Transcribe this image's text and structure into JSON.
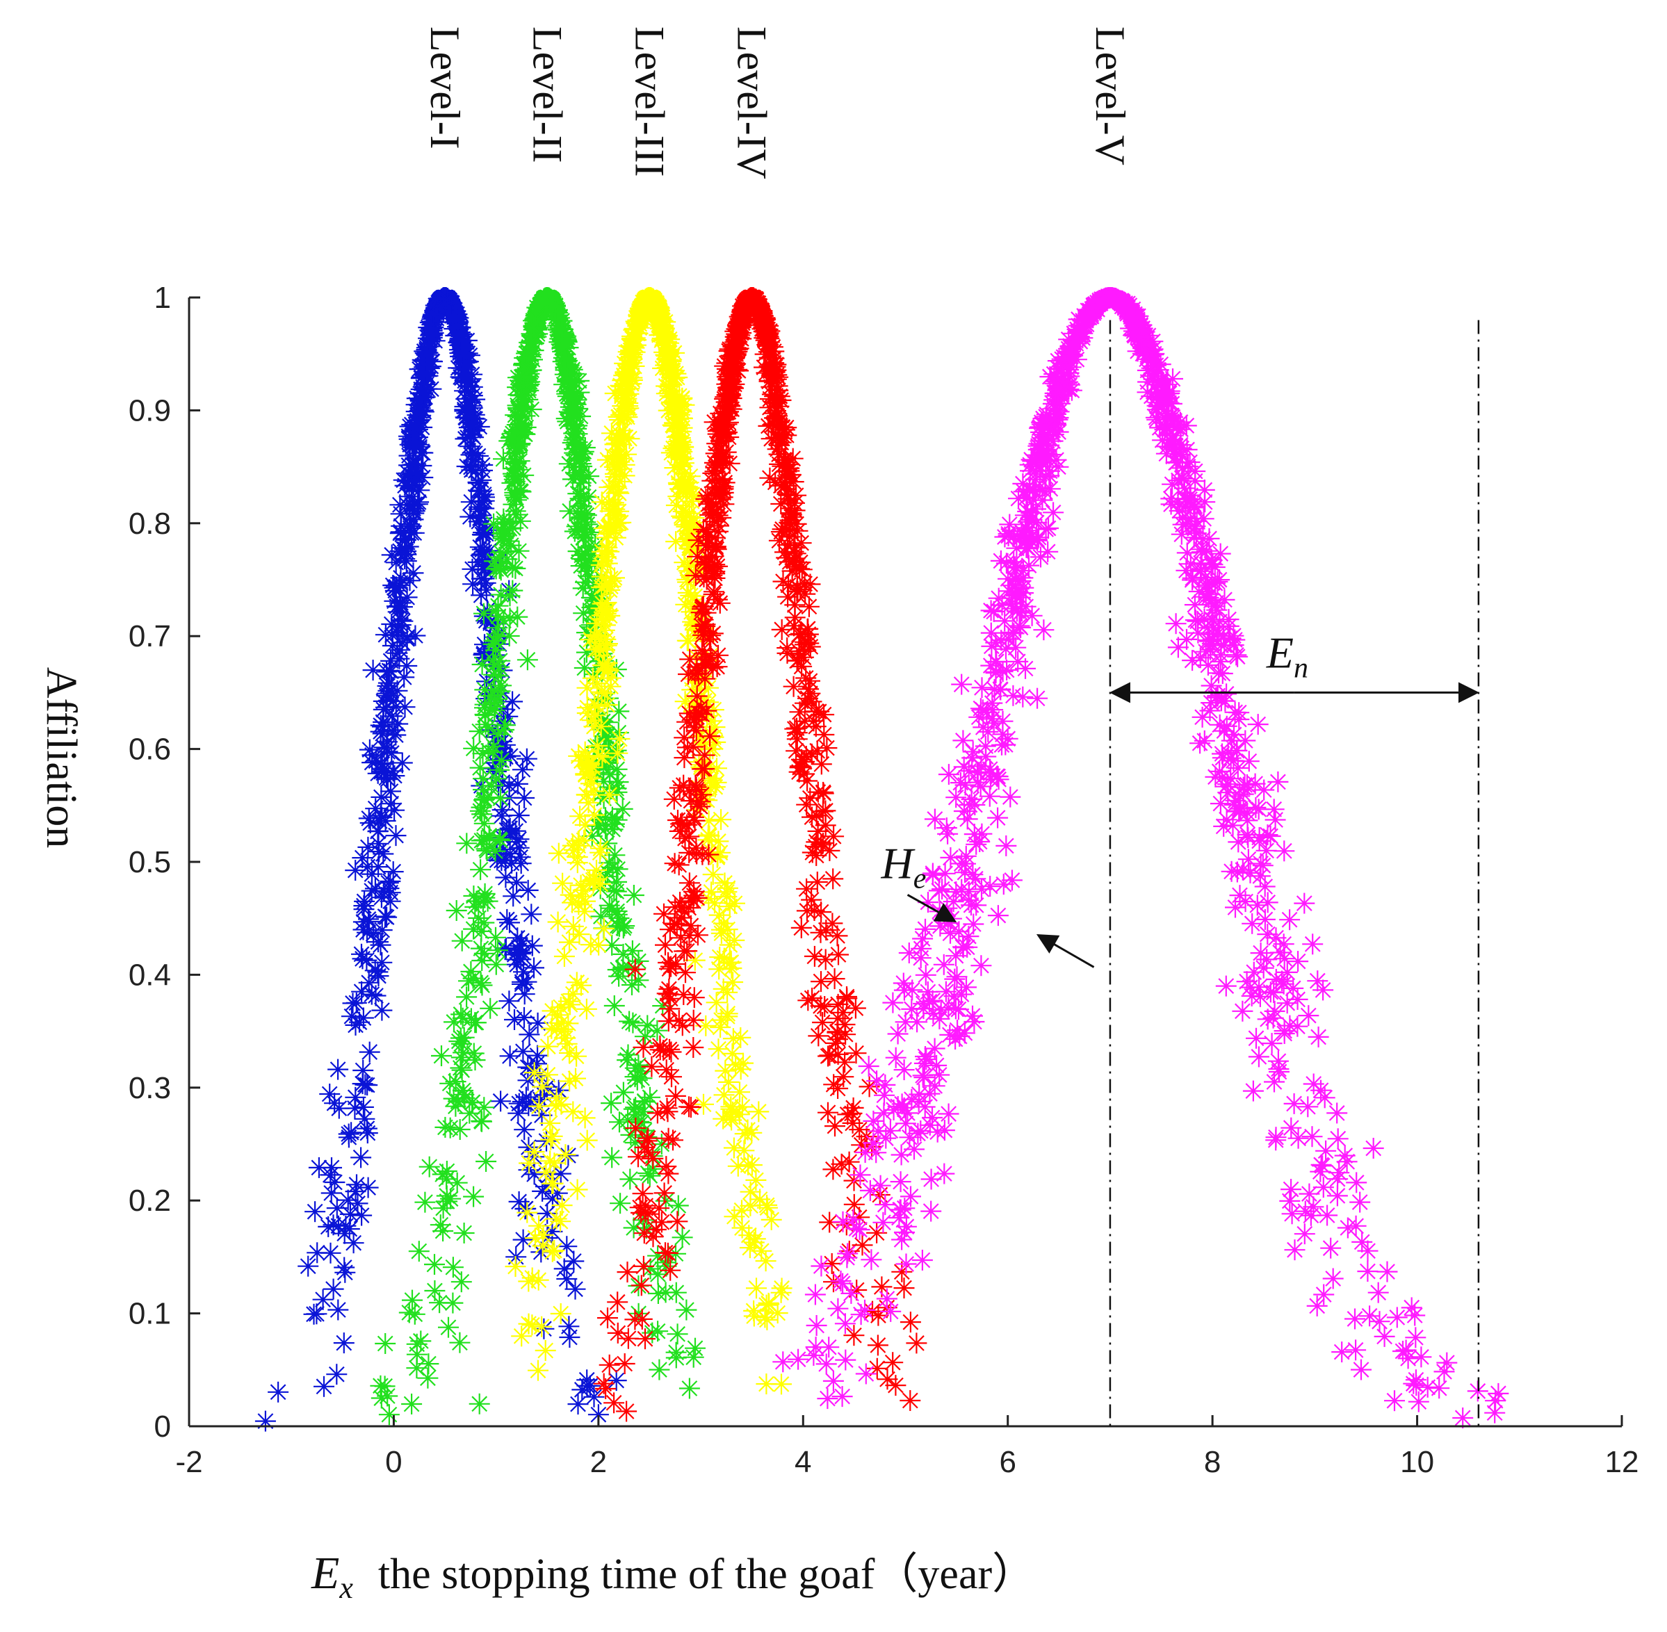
{
  "chart_data": {
    "type": "scatter",
    "title": "",
    "xlabel": {
      "symbol": "E",
      "subscript": "x",
      "text": "the stopping time of the goaf（year）"
    },
    "ylabel": "Affiliation",
    "xlim": [
      -2,
      12
    ],
    "ylim": [
      0,
      1
    ],
    "x_ticks": [
      "-2",
      "0",
      "2",
      "4",
      "6",
      "8",
      "10",
      "12"
    ],
    "y_ticks": [
      "0",
      "0.1",
      "0.2",
      "0.3",
      "0.4",
      "0.5",
      "0.6",
      "0.7",
      "0.8",
      "0.9",
      "1"
    ],
    "marker": "asterisk",
    "series": [
      {
        "name": "Level-I",
        "color": "#0a14d6",
        "Ex": 0.5,
        "En": 0.55,
        "He": 0.08,
        "min_x": -1.3,
        "max_x": 2.2
      },
      {
        "name": "Level-II",
        "color": "#22e01e",
        "Ex": 1.5,
        "En": 0.55,
        "He": 0.08,
        "min_x": -0.2,
        "max_x": 3.0
      },
      {
        "name": "Level-III",
        "color": "#ffff00",
        "Ex": 2.5,
        "En": 0.55,
        "He": 0.08,
        "min_x": 1.0,
        "max_x": 3.9
      },
      {
        "name": "Level-IV",
        "color": "#ff0000",
        "Ex": 3.5,
        "En": 0.55,
        "He": 0.08,
        "min_x": 2.0,
        "max_x": 5.2
      },
      {
        "name": "Level-V",
        "color": "#ff1aff",
        "Ex": 7.0,
        "En": 1.2,
        "He": 0.15,
        "min_x": 3.8,
        "max_x": 11.4
      }
    ],
    "annotations": {
      "en_label": {
        "symbol": "E",
        "subscript": "n",
        "from_x": 7.0,
        "to_x": 10.6,
        "y": 0.65
      },
      "he_label": {
        "symbol": "H",
        "subscript": "e",
        "x": 5.7,
        "y": 0.44
      },
      "dashdot_lines_x": [
        7.0,
        10.6
      ]
    }
  }
}
